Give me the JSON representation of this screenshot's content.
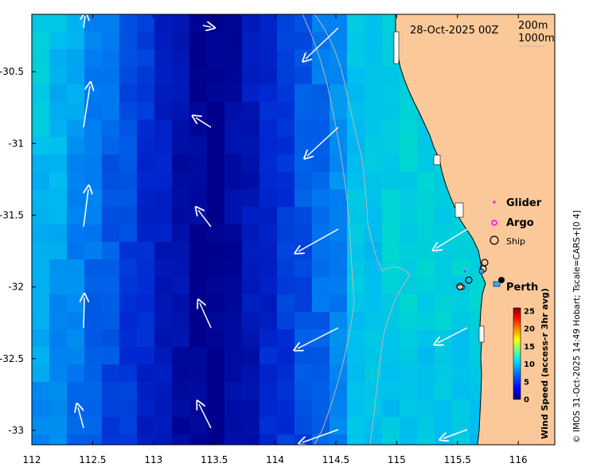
{
  "map": {
    "date_label": "28-Oct-2025 00Z",
    "depth_legend": [
      "200m",
      "1000m"
    ],
    "city": "Perth",
    "credit": "© IMOS 31-Oct-2025 14:49 Hobart; Tscale=CARS+[0 4]",
    "x_ticks": [
      "112",
      "112.5",
      "113",
      "113.5",
      "114",
      "114.5",
      "115",
      "115.5",
      "116"
    ],
    "y_ticks": [
      "-30.5",
      "-31",
      "-31.5",
      "-32",
      "-32.5",
      "-33"
    ],
    "lon_range": [
      112,
      116.3
    ],
    "lat_range": [
      -33.1,
      -30.1
    ]
  },
  "legend": {
    "items": [
      {
        "label": "Glider",
        "symbol": "dot",
        "color": "#ff00ff"
      },
      {
        "label": "Argo",
        "symbol": "ring",
        "color": "#ff00ff"
      },
      {
        "label": "Ship",
        "symbol": "circle",
        "color": "#000000"
      }
    ]
  },
  "colorbar": {
    "title": "Wind Speed (access-r 3hr avg)",
    "ticks": [
      "25",
      "20",
      "15",
      "10",
      "5",
      "0"
    ],
    "colors": [
      "#00007f",
      "#0000ff",
      "#007fff",
      "#00ffff",
      "#7fff7f",
      "#ffff00",
      "#ff7f00",
      "#ff0000",
      "#7f0000"
    ]
  },
  "colors": {
    "land": "#fbc999",
    "contour": "#b8b8b8"
  }
}
